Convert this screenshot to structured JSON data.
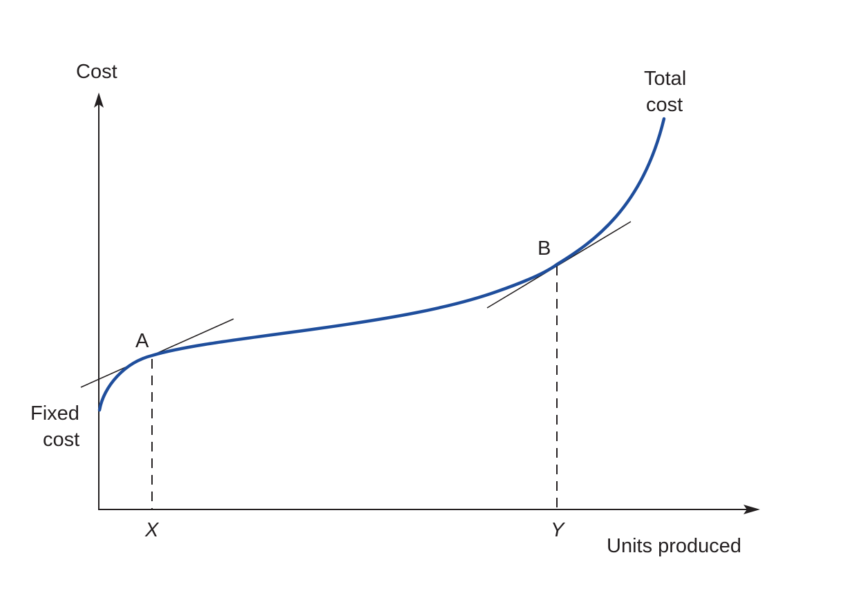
{
  "axes": {
    "y_label": "Cost",
    "x_label": "Units produced"
  },
  "curve": {
    "label_line1": "Total",
    "label_line2": "cost",
    "color": "#1f4e9c"
  },
  "fixed_cost": {
    "label_line1": "Fixed",
    "label_line2": "cost"
  },
  "points": {
    "a": "A",
    "b": "B"
  },
  "ticks": {
    "x": "X",
    "y": "Y"
  }
}
